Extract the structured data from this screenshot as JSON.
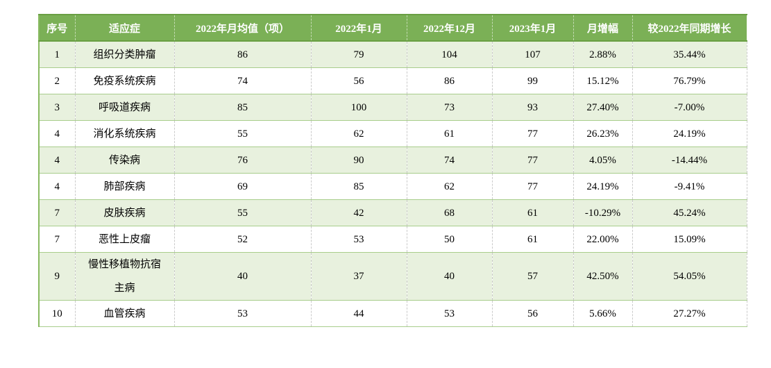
{
  "chart_data": {
    "type": "table",
    "columns": [
      "序号",
      "适应症",
      "2022年月均值（项）",
      "2022年1月",
      "2022年12月",
      "2023年1月",
      "月增幅",
      "较2022年同期增长"
    ],
    "rows": [
      [
        "1",
        "组织分类肿瘤",
        "86",
        "79",
        "104",
        "107",
        "2.88%",
        "35.44%"
      ],
      [
        "2",
        "免疫系统疾病",
        "74",
        "56",
        "86",
        "99",
        "15.12%",
        "76.79%"
      ],
      [
        "3",
        "呼吸道疾病",
        "85",
        "100",
        "73",
        "93",
        "27.40%",
        "-7.00%"
      ],
      [
        "4",
        "消化系统疾病",
        "55",
        "62",
        "61",
        "77",
        "26.23%",
        "24.19%"
      ],
      [
        "4",
        "传染病",
        "76",
        "90",
        "74",
        "77",
        "4.05%",
        "-14.44%"
      ],
      [
        "4",
        "肺部疾病",
        "69",
        "85",
        "62",
        "77",
        "24.19%",
        "-9.41%"
      ],
      [
        "7",
        "皮肤疾病",
        "55",
        "42",
        "68",
        "61",
        "-10.29%",
        "45.24%"
      ],
      [
        "7",
        "恶性上皮瘤",
        "52",
        "53",
        "50",
        "61",
        "22.00%",
        "15.09%"
      ],
      [
        "9",
        "慢性移植物抗宿主病",
        "40",
        "37",
        "40",
        "57",
        "42.50%",
        "54.05%"
      ],
      [
        "10",
        "血管疾病",
        "53",
        "44",
        "53",
        "56",
        "5.66%",
        "27.27%"
      ]
    ],
    "layout": {
      "alternating_rows": "odd rows shaded",
      "header_position": "top"
    }
  },
  "colors": {
    "header_bg": "#7BB056",
    "header_text": "#FFFFFF",
    "header_border": "#699F43",
    "alt_row_bg": "#E8F1DE",
    "row_divider": "#A8CD8B",
    "col_divider": "#CACACA",
    "outer_left": "#8ABB62",
    "text_color": "#000000"
  }
}
